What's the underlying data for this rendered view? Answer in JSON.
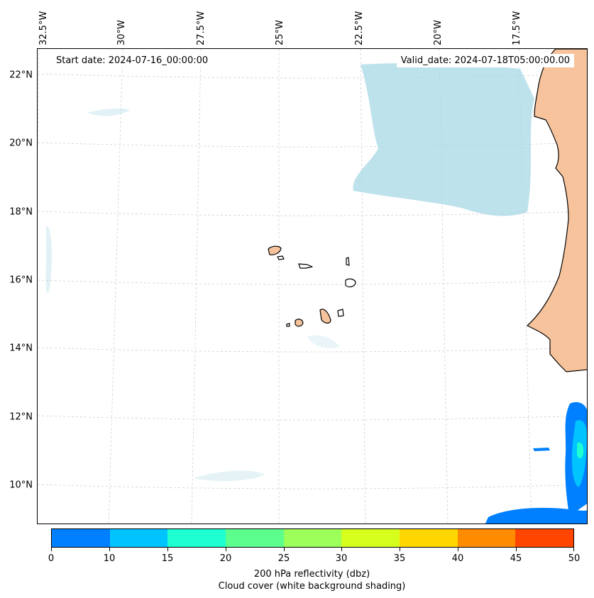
{
  "map": {
    "start_label": "Start date: 2024-07-16_00:00:00",
    "valid_label": "Valid_date: 2024-07-18T05:00:00.00",
    "lon_labels": [
      "32.5°W",
      "30°W",
      "27.5°W",
      "25°W",
      "22.5°W",
      "20°W",
      "17.5°W"
    ],
    "lat_labels": [
      "22°N",
      "20°N",
      "18°N",
      "16°N",
      "14°N",
      "12°N",
      "10°N"
    ],
    "land_color": "#f6c39c",
    "cloud_color": "#a8d8e6"
  },
  "colorbar": {
    "title_line1": "200 hPa reflectivity (dbz)",
    "title_line2": "Cloud cover (white background shading)",
    "tick_labels": [
      "0",
      "10",
      "15",
      "20",
      "25",
      "30",
      "35",
      "40",
      "45",
      "50"
    ],
    "colors": [
      "#0080ff",
      "#00c4ff",
      "#1effd2",
      "#5cff8e",
      "#9cff5a",
      "#d6ff1e",
      "#ffd700",
      "#ff8c00",
      "#ff4500"
    ]
  }
}
